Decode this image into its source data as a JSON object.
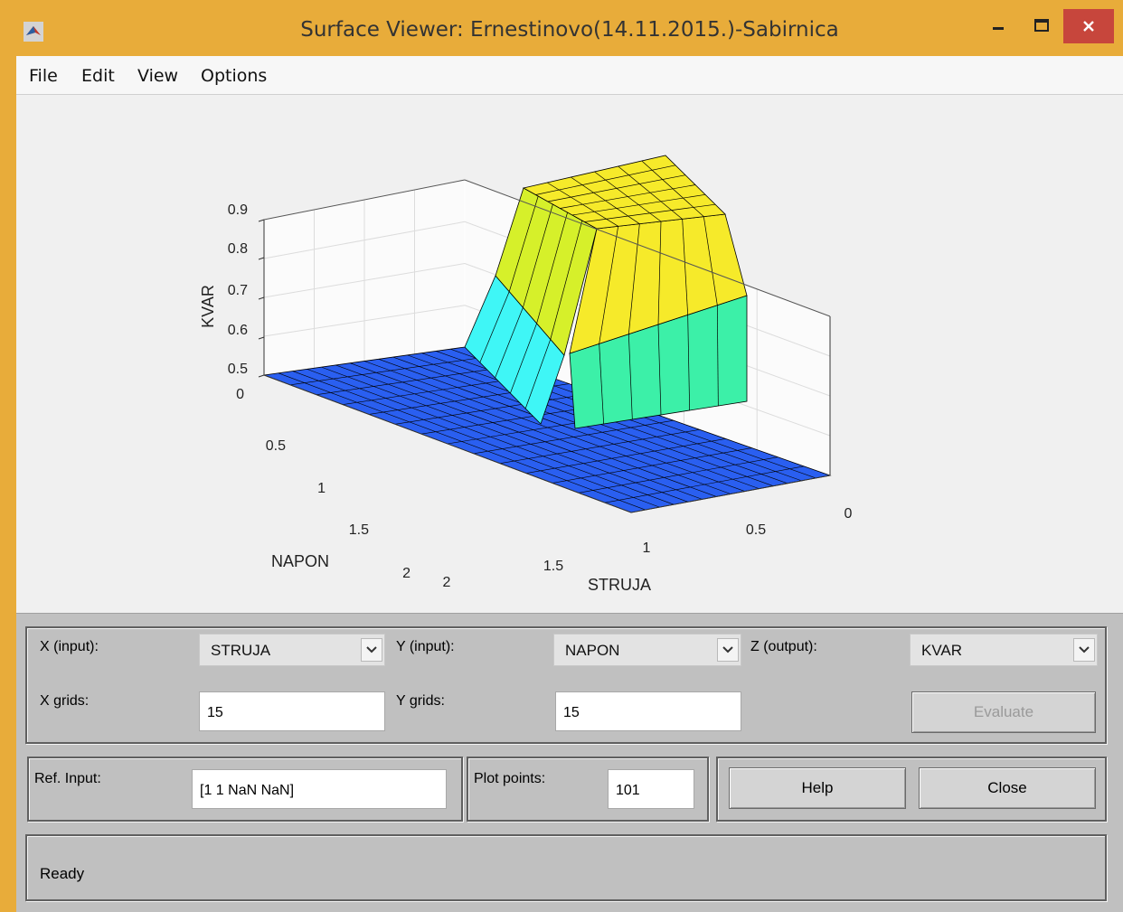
{
  "window": {
    "title": "Surface Viewer: Ernestinovo(14.11.2015.)-Sabirnica",
    "controls": [
      "minimize",
      "maximize",
      "close"
    ]
  },
  "menu": {
    "items": [
      "File",
      "Edit",
      "View",
      "Options"
    ]
  },
  "plot": {
    "zlabel": "KVAR",
    "xlabel": "STRUJA",
    "ylabel": "NAPON",
    "z_ticks": [
      "0",
      "0.5",
      "0.6",
      "0.7",
      "0.8",
      "0.9"
    ],
    "napon_ticks": [
      "0.5",
      "1",
      "1.5",
      "2"
    ],
    "struja_ticks": [
      "0",
      "0.5",
      "1",
      "1.5",
      "2"
    ],
    "colors": {
      "floor": "#2a5ff0",
      "cyan": "#3ff6f6",
      "aqua": "#3cf0a8",
      "yellow": "#f6ea2a",
      "lime": "#d6f02a"
    }
  },
  "controls": {
    "x_input_label": "X (input):",
    "x_input_value": "STRUJA",
    "y_input_label": "Y (input):",
    "y_input_value": "NAPON",
    "z_output_label": "Z (output):",
    "z_output_value": "KVAR",
    "x_grids_label": "X grids:",
    "x_grids_value": "15",
    "y_grids_label": "Y grids:",
    "y_grids_value": "15",
    "evaluate_label": "Evaluate",
    "ref_input_label": "Ref. Input:",
    "ref_input_value": "[1 1 NaN NaN]",
    "plot_points_label": "Plot points:",
    "plot_points_value": "101",
    "help_label": "Help",
    "close_label": "Close",
    "status_text": "Ready"
  }
}
